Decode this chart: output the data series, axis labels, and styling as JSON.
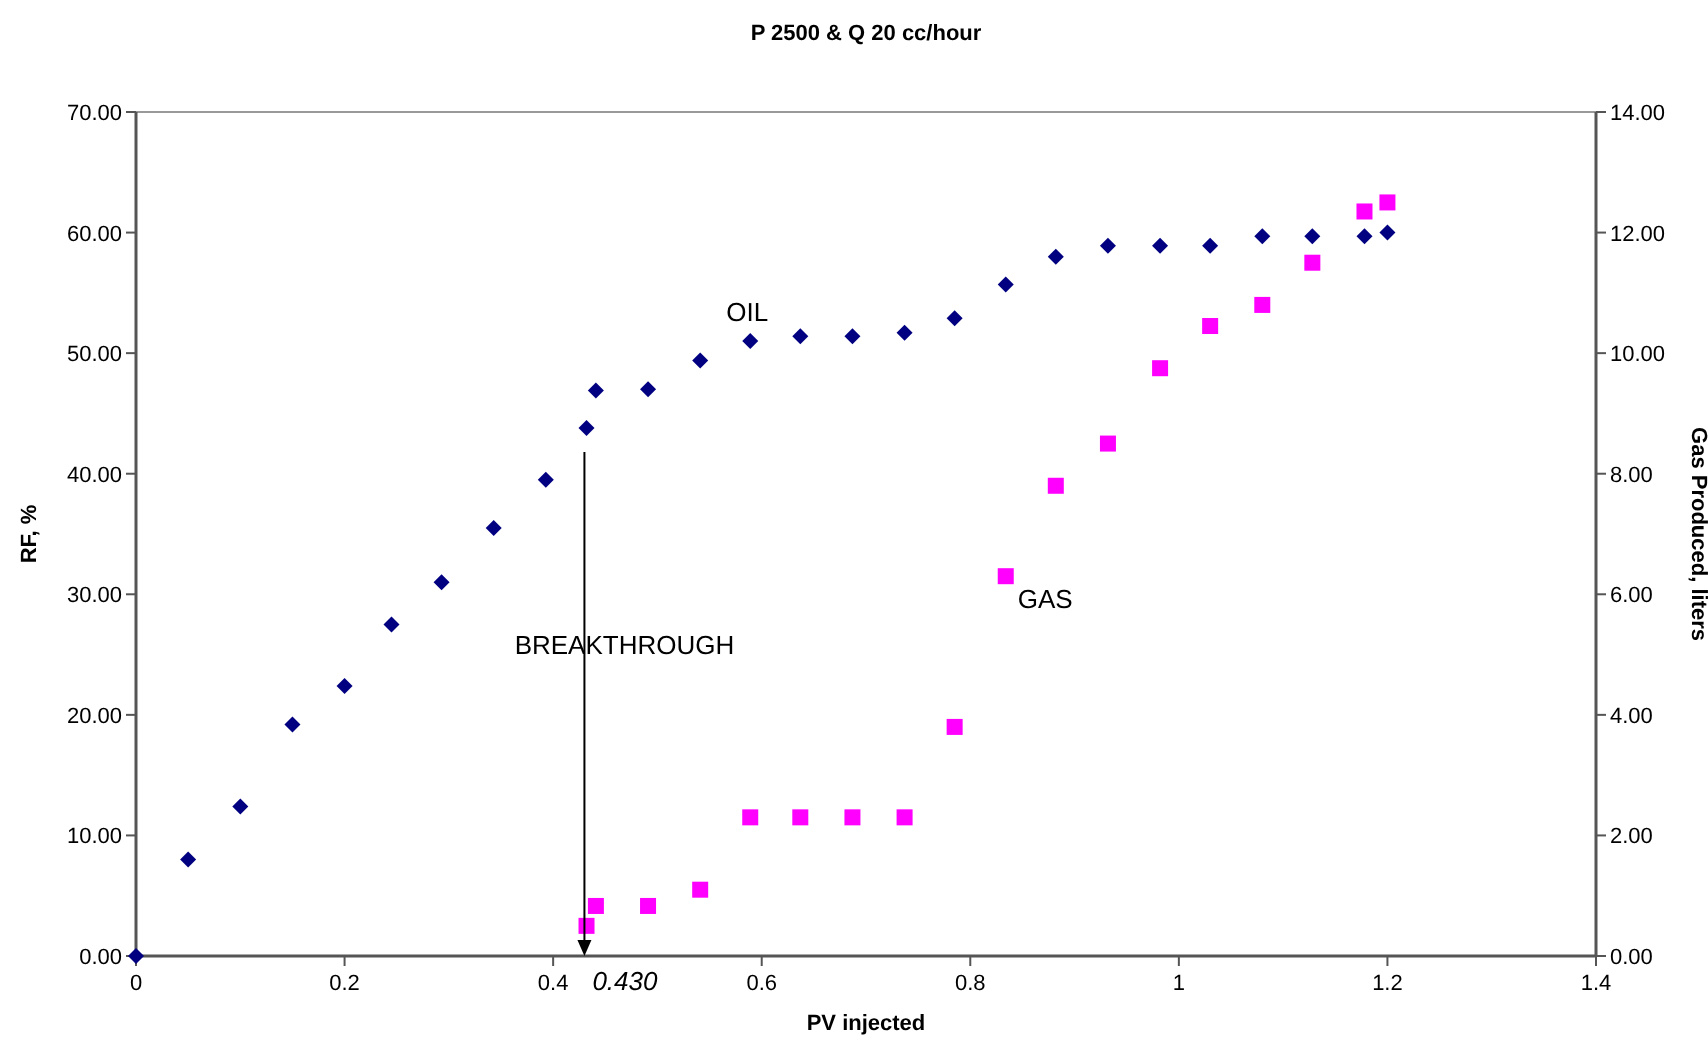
{
  "chart_data": {
    "type": "scatter",
    "title": "P 2500 & Q 20 cc/hour",
    "xlabel": "PV injected",
    "ylabel": "RF, %",
    "y2label": "Gas Produced, liters",
    "xlim": [
      0,
      1.4
    ],
    "xticks": [
      0,
      0.2,
      0.4,
      0.6,
      0.8,
      1,
      1.2,
      1.4
    ],
    "ylim": [
      0,
      70
    ],
    "yticks": [
      {
        "value": 0,
        "label": "0.00"
      },
      {
        "value": 10,
        "label": "10.00"
      },
      {
        "value": 20,
        "label": "20.00"
      },
      {
        "value": 30,
        "label": "30.00"
      },
      {
        "value": 40,
        "label": "40.00"
      },
      {
        "value": 50,
        "label": "50.00"
      },
      {
        "value": 60,
        "label": "60.00"
      },
      {
        "value": 70,
        "label": "70.00"
      }
    ],
    "y2lim": [
      0,
      14
    ],
    "y2ticks": [
      {
        "value": 0,
        "label": "0.00"
      },
      {
        "value": 2,
        "label": "2.00"
      },
      {
        "value": 4,
        "label": "4.00"
      },
      {
        "value": 6,
        "label": "6.00"
      },
      {
        "value": 8,
        "label": "8.00"
      },
      {
        "value": 10,
        "label": "10.00"
      },
      {
        "value": 12,
        "label": "12.00"
      },
      {
        "value": 14,
        "label": "14.00"
      }
    ],
    "grid": false,
    "ref_lines": [
      {
        "axis": "x",
        "value": 0.43,
        "label": "0.430"
      }
    ],
    "series": [
      {
        "name": "OIL",
        "color": "#000080",
        "marker": "diamond",
        "x": [
          0,
          0.05,
          0.1,
          0.15,
          0.2,
          0.245,
          0.293,
          0.343,
          0.393,
          0.432,
          0.441,
          0.491,
          0.541,
          0.589,
          0.637,
          0.687,
          0.737,
          0.785,
          0.834,
          0.882,
          0.932,
          0.982,
          1.03,
          1.08,
          1.128,
          1.178,
          1.2
        ],
        "values": [
          0,
          8,
          12.4,
          19.2,
          22.4,
          27.5,
          31,
          35.5,
          39.5,
          43.8,
          46.9,
          47,
          49.4,
          51,
          51.4,
          51.4,
          51.7,
          52.9,
          55.7,
          58,
          58.9,
          58.9,
          58.9,
          59.7,
          59.7,
          59.7,
          60
        ]
      },
      {
        "name": "GAS",
        "color": "#ff00ff",
        "marker": "square",
        "axis": "y2",
        "x": [
          0.432,
          0.441,
          0.491,
          0.541,
          0.589,
          0.637,
          0.687,
          0.737,
          0.785,
          0.834,
          0.882,
          0.932,
          0.982,
          1.03,
          1.08,
          1.128,
          1.178,
          1.2
        ],
        "values": [
          0.5,
          0.83,
          0.83,
          1.1,
          2.3,
          2.3,
          2.3,
          2.3,
          3.8,
          6.3,
          7.8,
          8.5,
          9.75,
          10.45,
          10.8,
          11.5,
          12.35,
          12.5
        ]
      }
    ],
    "annotations": [
      "BREAKTHROUGH"
    ]
  }
}
